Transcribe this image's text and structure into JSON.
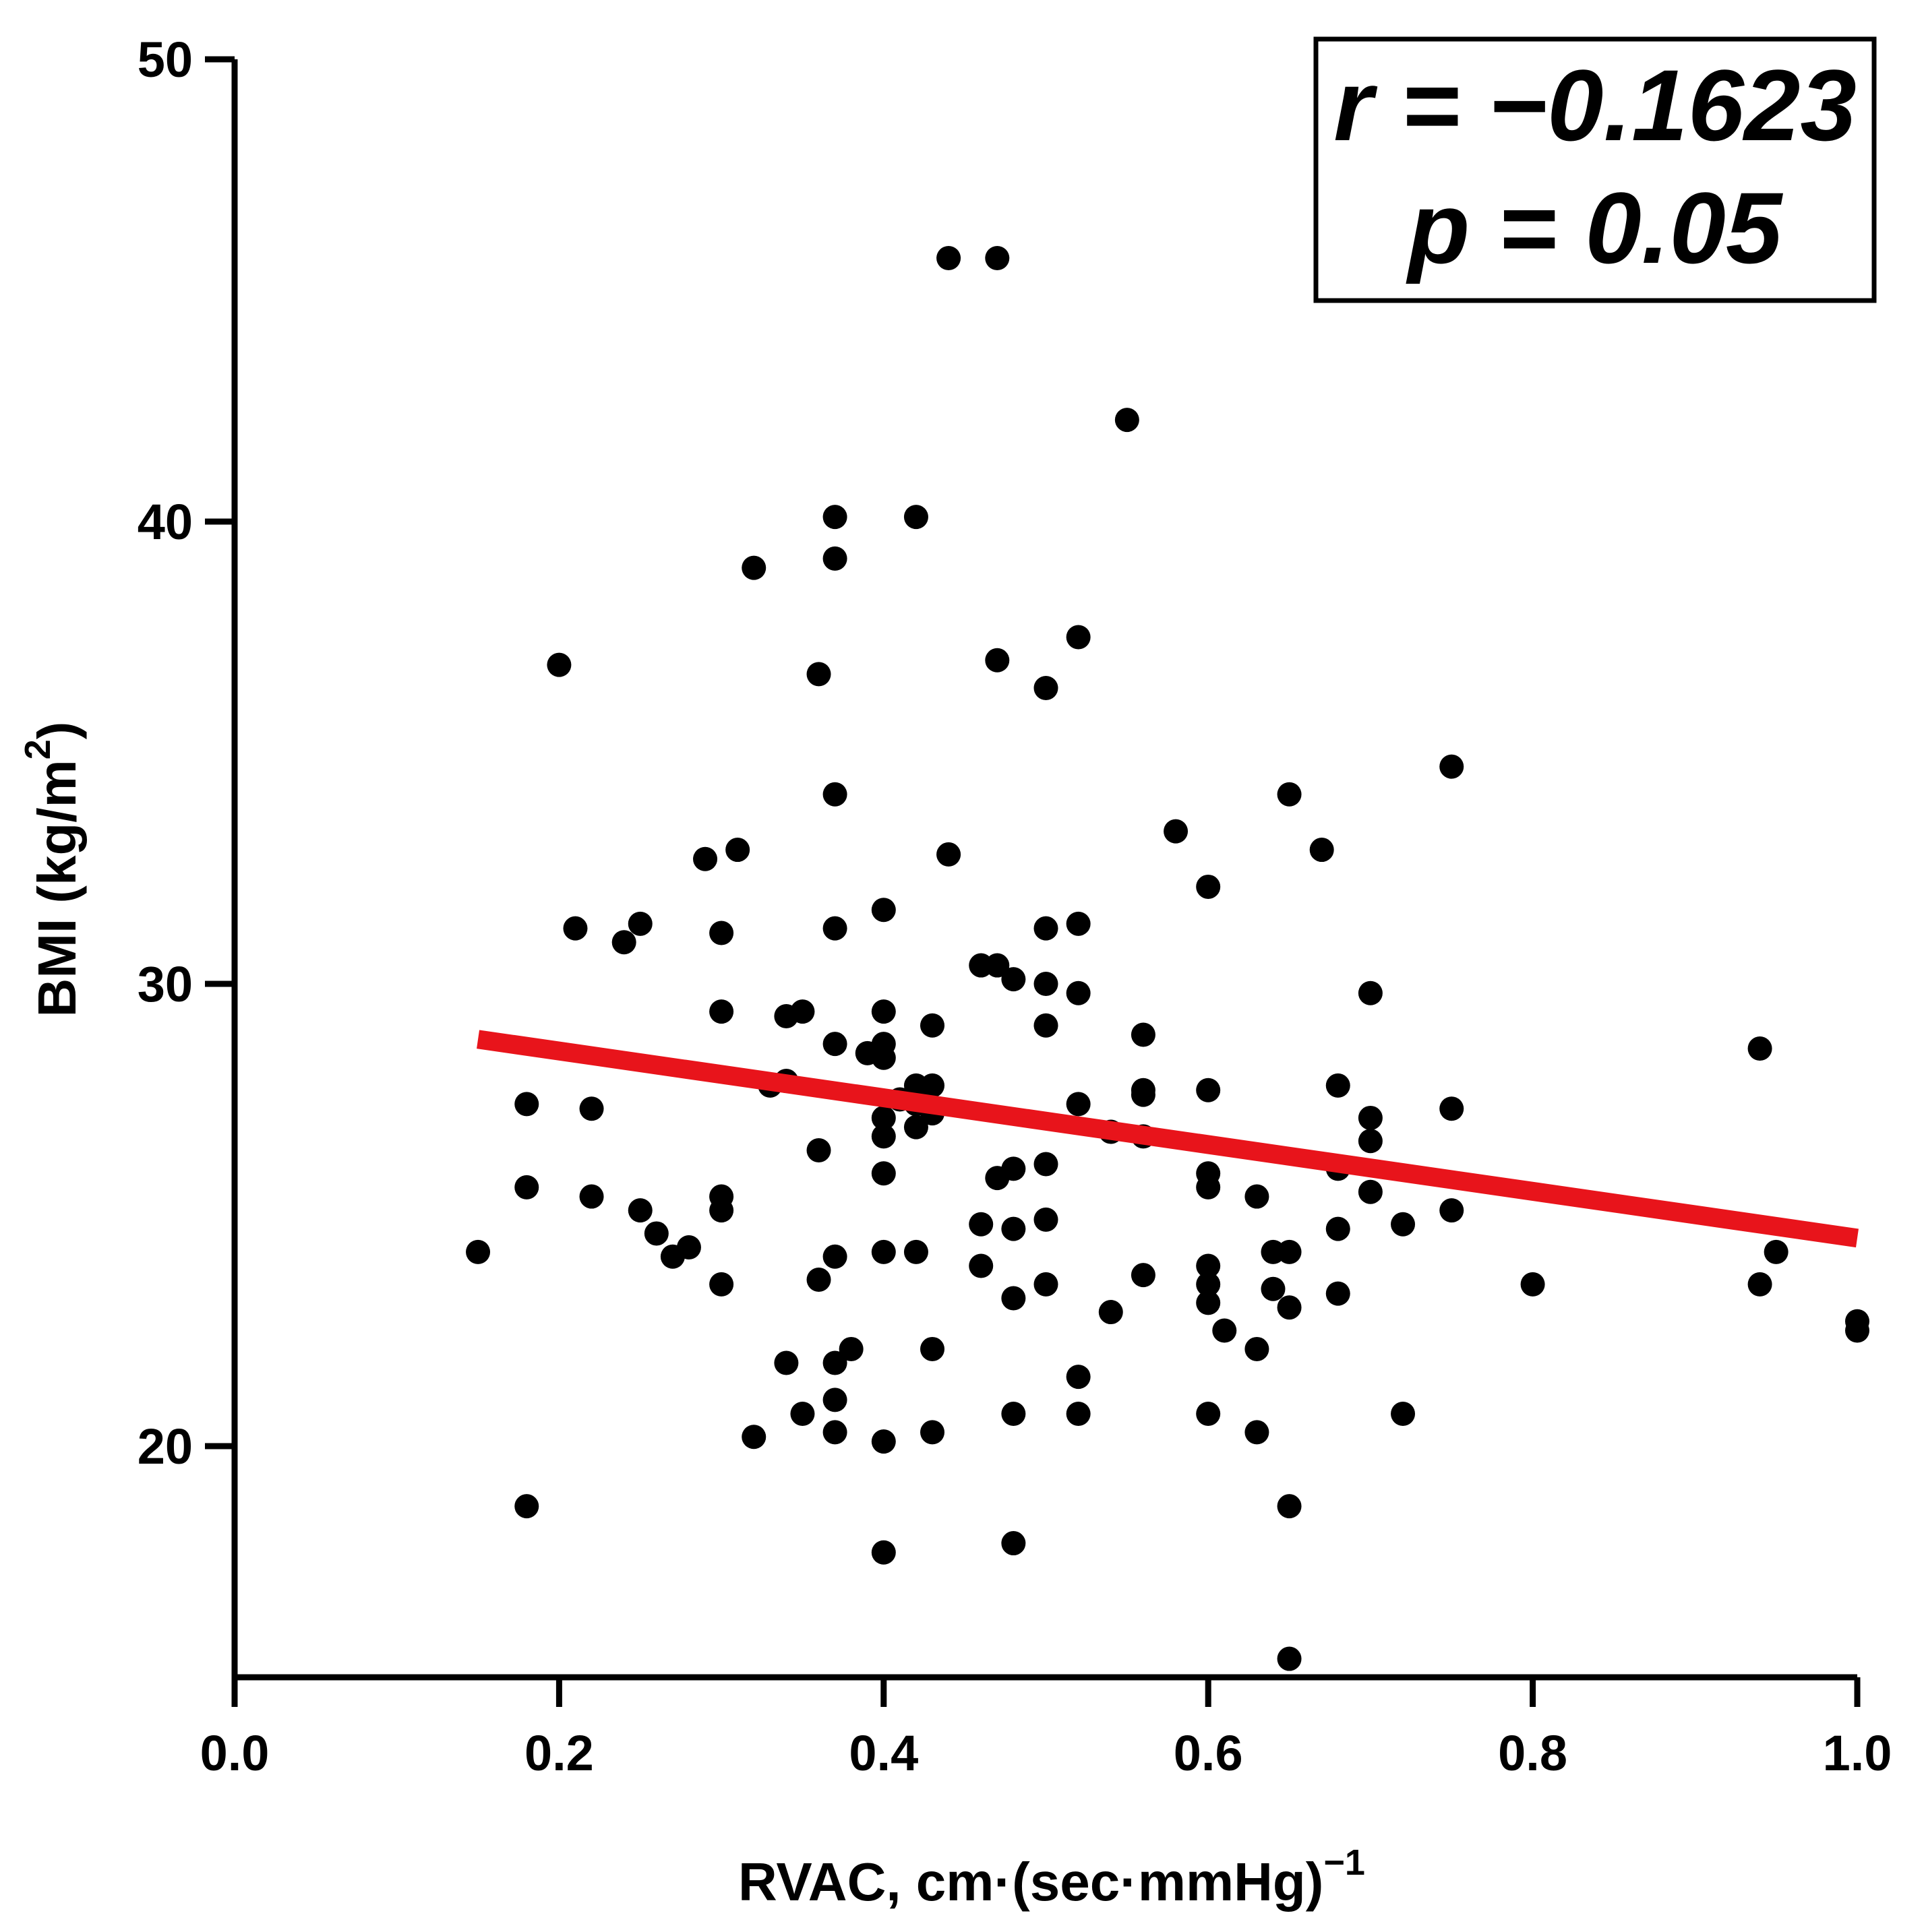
{
  "chart_data": {
    "type": "scatter",
    "title": "",
    "xlabel": {
      "main": "RVAC, cm·(sec·mmHg)",
      "superscript": "−1"
    },
    "ylabel": {
      "main": "BMI (kg/m",
      "superscript": "2",
      "suffix": ")"
    },
    "xlim": [
      0.0,
      1.0
    ],
    "ylim": [
      15,
      50
    ],
    "x_ticks": [
      "0.0",
      "0.2",
      "0.4",
      "0.6",
      "0.8",
      "1.0"
    ],
    "y_ticks": [
      "20",
      "30",
      "40",
      "50"
    ],
    "x_tick_values": [
      0.0,
      0.2,
      0.4,
      0.6,
      0.8,
      1.0
    ],
    "y_tick_values": [
      20,
      30,
      40,
      50
    ],
    "grid": false,
    "annotation": {
      "r_label": "r",
      "r_value": "−0.1623",
      "p_label": "p",
      "p_value": "0.05"
    },
    "regression_line": {
      "color": "#e8141b",
      "x": [
        0.15,
        1.0
      ],
      "y": [
        28.8,
        24.5
      ]
    },
    "points": [
      {
        "x": 0.15,
        "y": 24.2
      },
      {
        "x": 0.18,
        "y": 27.4
      },
      {
        "x": 0.18,
        "y": 25.6
      },
      {
        "x": 0.18,
        "y": 18.7
      },
      {
        "x": 0.2,
        "y": 36.9
      },
      {
        "x": 0.21,
        "y": 31.2
      },
      {
        "x": 0.22,
        "y": 27.3
      },
      {
        "x": 0.22,
        "y": 25.4
      },
      {
        "x": 0.24,
        "y": 30.9
      },
      {
        "x": 0.25,
        "y": 31.3
      },
      {
        "x": 0.25,
        "y": 25.1
      },
      {
        "x": 0.26,
        "y": 24.6
      },
      {
        "x": 0.27,
        "y": 24.1
      },
      {
        "x": 0.28,
        "y": 24.3
      },
      {
        "x": 0.29,
        "y": 32.7
      },
      {
        "x": 0.3,
        "y": 31.1
      },
      {
        "x": 0.3,
        "y": 29.4
      },
      {
        "x": 0.3,
        "y": 25.4
      },
      {
        "x": 0.3,
        "y": 25.1
      },
      {
        "x": 0.3,
        "y": 23.5
      },
      {
        "x": 0.31,
        "y": 32.9
      },
      {
        "x": 0.32,
        "y": 39.0
      },
      {
        "x": 0.32,
        "y": 20.2
      },
      {
        "x": 0.33,
        "y": 27.8
      },
      {
        "x": 0.34,
        "y": 29.3
      },
      {
        "x": 0.34,
        "y": 27.9
      },
      {
        "x": 0.34,
        "y": 21.8
      },
      {
        "x": 0.35,
        "y": 29.4
      },
      {
        "x": 0.35,
        "y": 20.7
      },
      {
        "x": 0.36,
        "y": 36.7
      },
      {
        "x": 0.36,
        "y": 26.4
      },
      {
        "x": 0.36,
        "y": 23.6
      },
      {
        "x": 0.37,
        "y": 40.1
      },
      {
        "x": 0.37,
        "y": 39.2
      },
      {
        "x": 0.37,
        "y": 34.1
      },
      {
        "x": 0.37,
        "y": 31.2
      },
      {
        "x": 0.37,
        "y": 28.7
      },
      {
        "x": 0.37,
        "y": 24.1
      },
      {
        "x": 0.37,
        "y": 21.8
      },
      {
        "x": 0.37,
        "y": 21.0
      },
      {
        "x": 0.37,
        "y": 20.3
      },
      {
        "x": 0.38,
        "y": 22.1
      },
      {
        "x": 0.39,
        "y": 28.5
      },
      {
        "x": 0.4,
        "y": 31.6
      },
      {
        "x": 0.4,
        "y": 29.4
      },
      {
        "x": 0.4,
        "y": 28.7
      },
      {
        "x": 0.4,
        "y": 28.4
      },
      {
        "x": 0.4,
        "y": 27.1
      },
      {
        "x": 0.4,
        "y": 26.7
      },
      {
        "x": 0.4,
        "y": 25.9
      },
      {
        "x": 0.4,
        "y": 24.2
      },
      {
        "x": 0.4,
        "y": 20.1
      },
      {
        "x": 0.4,
        "y": 17.7
      },
      {
        "x": 0.41,
        "y": 27.5
      },
      {
        "x": 0.42,
        "y": 40.1
      },
      {
        "x": 0.42,
        "y": 27.8
      },
      {
        "x": 0.42,
        "y": 27.4
      },
      {
        "x": 0.42,
        "y": 26.9
      },
      {
        "x": 0.42,
        "y": 24.2
      },
      {
        "x": 0.43,
        "y": 29.1
      },
      {
        "x": 0.43,
        "y": 27.8
      },
      {
        "x": 0.43,
        "y": 27.2
      },
      {
        "x": 0.43,
        "y": 22.1
      },
      {
        "x": 0.43,
        "y": 20.3
      },
      {
        "x": 0.44,
        "y": 45.7
      },
      {
        "x": 0.44,
        "y": 32.8
      },
      {
        "x": 0.46,
        "y": 30.4
      },
      {
        "x": 0.46,
        "y": 24.8
      },
      {
        "x": 0.46,
        "y": 23.9
      },
      {
        "x": 0.47,
        "y": 45.7
      },
      {
        "x": 0.47,
        "y": 37.0
      },
      {
        "x": 0.47,
        "y": 30.4
      },
      {
        "x": 0.47,
        "y": 25.8
      },
      {
        "x": 0.48,
        "y": 30.1
      },
      {
        "x": 0.48,
        "y": 26.0
      },
      {
        "x": 0.48,
        "y": 24.7
      },
      {
        "x": 0.48,
        "y": 23.2
      },
      {
        "x": 0.48,
        "y": 20.7
      },
      {
        "x": 0.48,
        "y": 17.9
      },
      {
        "x": 0.5,
        "y": 36.4
      },
      {
        "x": 0.5,
        "y": 31.2
      },
      {
        "x": 0.5,
        "y": 30.0
      },
      {
        "x": 0.5,
        "y": 29.1
      },
      {
        "x": 0.5,
        "y": 26.1
      },
      {
        "x": 0.5,
        "y": 24.9
      },
      {
        "x": 0.5,
        "y": 23.5
      },
      {
        "x": 0.52,
        "y": 37.5
      },
      {
        "x": 0.52,
        "y": 31.3
      },
      {
        "x": 0.52,
        "y": 29.8
      },
      {
        "x": 0.52,
        "y": 27.4
      },
      {
        "x": 0.52,
        "y": 21.5
      },
      {
        "x": 0.52,
        "y": 20.7
      },
      {
        "x": 0.54,
        "y": 26.8
      },
      {
        "x": 0.54,
        "y": 22.9
      },
      {
        "x": 0.55,
        "y": 42.2
      },
      {
        "x": 0.56,
        "y": 28.9
      },
      {
        "x": 0.56,
        "y": 27.7
      },
      {
        "x": 0.56,
        "y": 27.6
      },
      {
        "x": 0.56,
        "y": 26.7
      },
      {
        "x": 0.56,
        "y": 23.7
      },
      {
        "x": 0.58,
        "y": 33.3
      },
      {
        "x": 0.6,
        "y": 32.1
      },
      {
        "x": 0.6,
        "y": 27.7
      },
      {
        "x": 0.6,
        "y": 25.9
      },
      {
        "x": 0.6,
        "y": 25.6
      },
      {
        "x": 0.6,
        "y": 23.9
      },
      {
        "x": 0.6,
        "y": 23.5
      },
      {
        "x": 0.6,
        "y": 23.1
      },
      {
        "x": 0.6,
        "y": 20.7
      },
      {
        "x": 0.61,
        "y": 22.5
      },
      {
        "x": 0.63,
        "y": 25.4
      },
      {
        "x": 0.63,
        "y": 22.1
      },
      {
        "x": 0.63,
        "y": 20.3
      },
      {
        "x": 0.64,
        "y": 24.2
      },
      {
        "x": 0.64,
        "y": 23.4
      },
      {
        "x": 0.65,
        "y": 34.1
      },
      {
        "x": 0.65,
        "y": 24.2
      },
      {
        "x": 0.65,
        "y": 23.0
      },
      {
        "x": 0.65,
        "y": 18.7
      },
      {
        "x": 0.65,
        "y": 15.4
      },
      {
        "x": 0.67,
        "y": 32.9
      },
      {
        "x": 0.68,
        "y": 27.8
      },
      {
        "x": 0.68,
        "y": 26.0
      },
      {
        "x": 0.68,
        "y": 24.7
      },
      {
        "x": 0.68,
        "y": 23.3
      },
      {
        "x": 0.7,
        "y": 29.8
      },
      {
        "x": 0.7,
        "y": 27.1
      },
      {
        "x": 0.7,
        "y": 26.6
      },
      {
        "x": 0.7,
        "y": 25.5
      },
      {
        "x": 0.72,
        "y": 24.8
      },
      {
        "x": 0.72,
        "y": 20.7
      },
      {
        "x": 0.75,
        "y": 34.7
      },
      {
        "x": 0.75,
        "y": 27.3
      },
      {
        "x": 0.75,
        "y": 25.1
      },
      {
        "x": 0.8,
        "y": 23.5
      },
      {
        "x": 0.94,
        "y": 28.6
      },
      {
        "x": 0.94,
        "y": 23.5
      },
      {
        "x": 0.95,
        "y": 24.2
      },
      {
        "x": 1.0,
        "y": 22.7
      },
      {
        "x": 1.0,
        "y": 22.5
      }
    ]
  }
}
